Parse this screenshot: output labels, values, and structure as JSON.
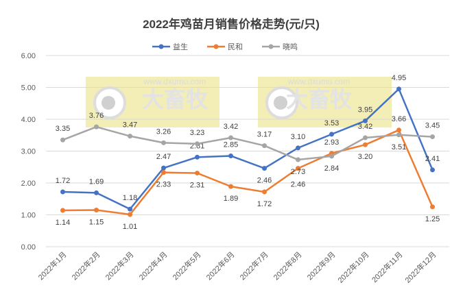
{
  "chart_data": {
    "type": "line",
    "title": "2022年鸡苗月销售价格走势(元/只)",
    "categories": [
      "2022年1月",
      "2022年2月",
      "2022年3月",
      "2022年4月",
      "2022年5月",
      "2022年6月",
      "2022年7月",
      "2022年8月",
      "2022年9月",
      "2022年10月",
      "2022年11月",
      "2022年12月"
    ],
    "ylim": [
      0,
      6
    ],
    "yticks": [
      "0.00",
      "1.00",
      "2.00",
      "3.00",
      "4.00",
      "5.00",
      "6.00"
    ],
    "grid": true,
    "legend_placement": "top",
    "series": [
      {
        "name": "益生",
        "color": "#4472C4",
        "values": [
          1.72,
          1.69,
          1.18,
          2.47,
          2.81,
          2.85,
          2.46,
          3.1,
          3.53,
          3.95,
          4.95,
          2.41
        ],
        "label_pos": [
          "above",
          "above",
          "above",
          "above",
          "above",
          "above",
          "below",
          "above",
          "above",
          "above",
          "above",
          "above"
        ]
      },
      {
        "name": "民和",
        "color": "#ED7D31",
        "values": [
          1.14,
          1.15,
          1.01,
          2.33,
          2.31,
          1.89,
          1.72,
          2.46,
          2.93,
          3.2,
          3.66,
          1.25
        ],
        "label_pos": [
          "below",
          "below",
          "below",
          "below",
          "below",
          "below",
          "below",
          "below",
          "above",
          "below",
          "above",
          "below"
        ]
      },
      {
        "name": "晓鸣",
        "color": "#A5A5A5",
        "values": [
          3.35,
          3.76,
          3.47,
          3.26,
          3.23,
          3.42,
          3.17,
          2.73,
          2.84,
          3.42,
          3.51,
          3.45
        ],
        "label_pos": [
          "above",
          "above",
          "above",
          "above",
          "above",
          "above",
          "above",
          "below",
          "below",
          "above",
          "below",
          "above"
        ]
      }
    ]
  },
  "watermark": {
    "brand": "大畜牧",
    "url": "www.dxumu.com",
    "color": "#F3EDB6"
  }
}
